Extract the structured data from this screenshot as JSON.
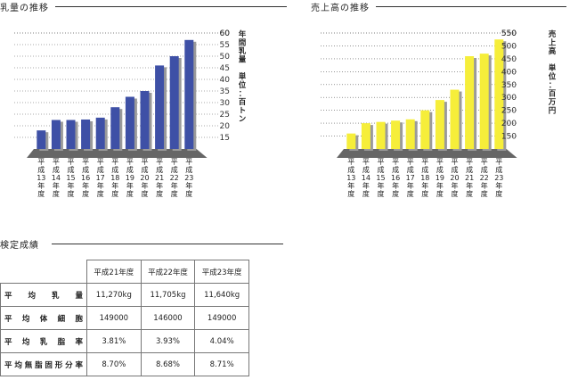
{
  "milk_section": {
    "title": "乳量の推移"
  },
  "sales_section": {
    "title": "売上高の推移"
  },
  "stats_section": {
    "title": "検定成績"
  },
  "chart_data": [
    {
      "type": "bar",
      "title": "乳量の推移",
      "categories": [
        "平成13年度",
        "平成14年度",
        "平成15年度",
        "平成16年度",
        "平成17年度",
        "平成18年度",
        "平成19年度",
        "平成20年度",
        "平成21年度",
        "平成22年度",
        "平成23年度"
      ],
      "values": [
        18,
        22.5,
        22.5,
        22.7,
        23.5,
        28,
        32.5,
        35,
        46,
        50,
        57
      ],
      "ylabel": "年間乳量　単位：百トン",
      "yticks": [
        15,
        20,
        25,
        30,
        35,
        40,
        45,
        50,
        55,
        60
      ],
      "ylim": [
        10,
        60
      ],
      "grid": true,
      "color": "#3e50a6"
    },
    {
      "type": "bar",
      "title": "売上高の推移",
      "categories": [
        "平成13年度",
        "平成14年度",
        "平成15年度",
        "平成16年度",
        "平成17年度",
        "平成18年度",
        "平成19年度",
        "平成20年度",
        "平成21年度",
        "平成22年度",
        "平成23年度"
      ],
      "values": [
        160,
        200,
        205,
        210,
        215,
        250,
        290,
        330,
        460,
        470,
        525
      ],
      "ylabel": "売上高　単位：百万円",
      "yticks": [
        150,
        200,
        250,
        300,
        350,
        400,
        450,
        500,
        550
      ],
      "ylim": [
        100,
        550
      ],
      "grid": true,
      "color": "#f6ee3a"
    }
  ],
  "stats_table": {
    "headers": [
      "平成21年度",
      "平成22年度",
      "平成23年度"
    ],
    "rows": [
      {
        "label": "平均乳量",
        "values": [
          "11,270kg",
          "11,705kg",
          "11,640kg"
        ]
      },
      {
        "label": "平均体細胞",
        "values": [
          "149000",
          "146000",
          "149000"
        ]
      },
      {
        "label": "平均乳脂率",
        "values": [
          "3.81%",
          "3.93%",
          "4.04%"
        ]
      },
      {
        "label": "平均無脂固形分率",
        "values": [
          "8.70%",
          "8.68%",
          "8.71%"
        ]
      }
    ]
  }
}
